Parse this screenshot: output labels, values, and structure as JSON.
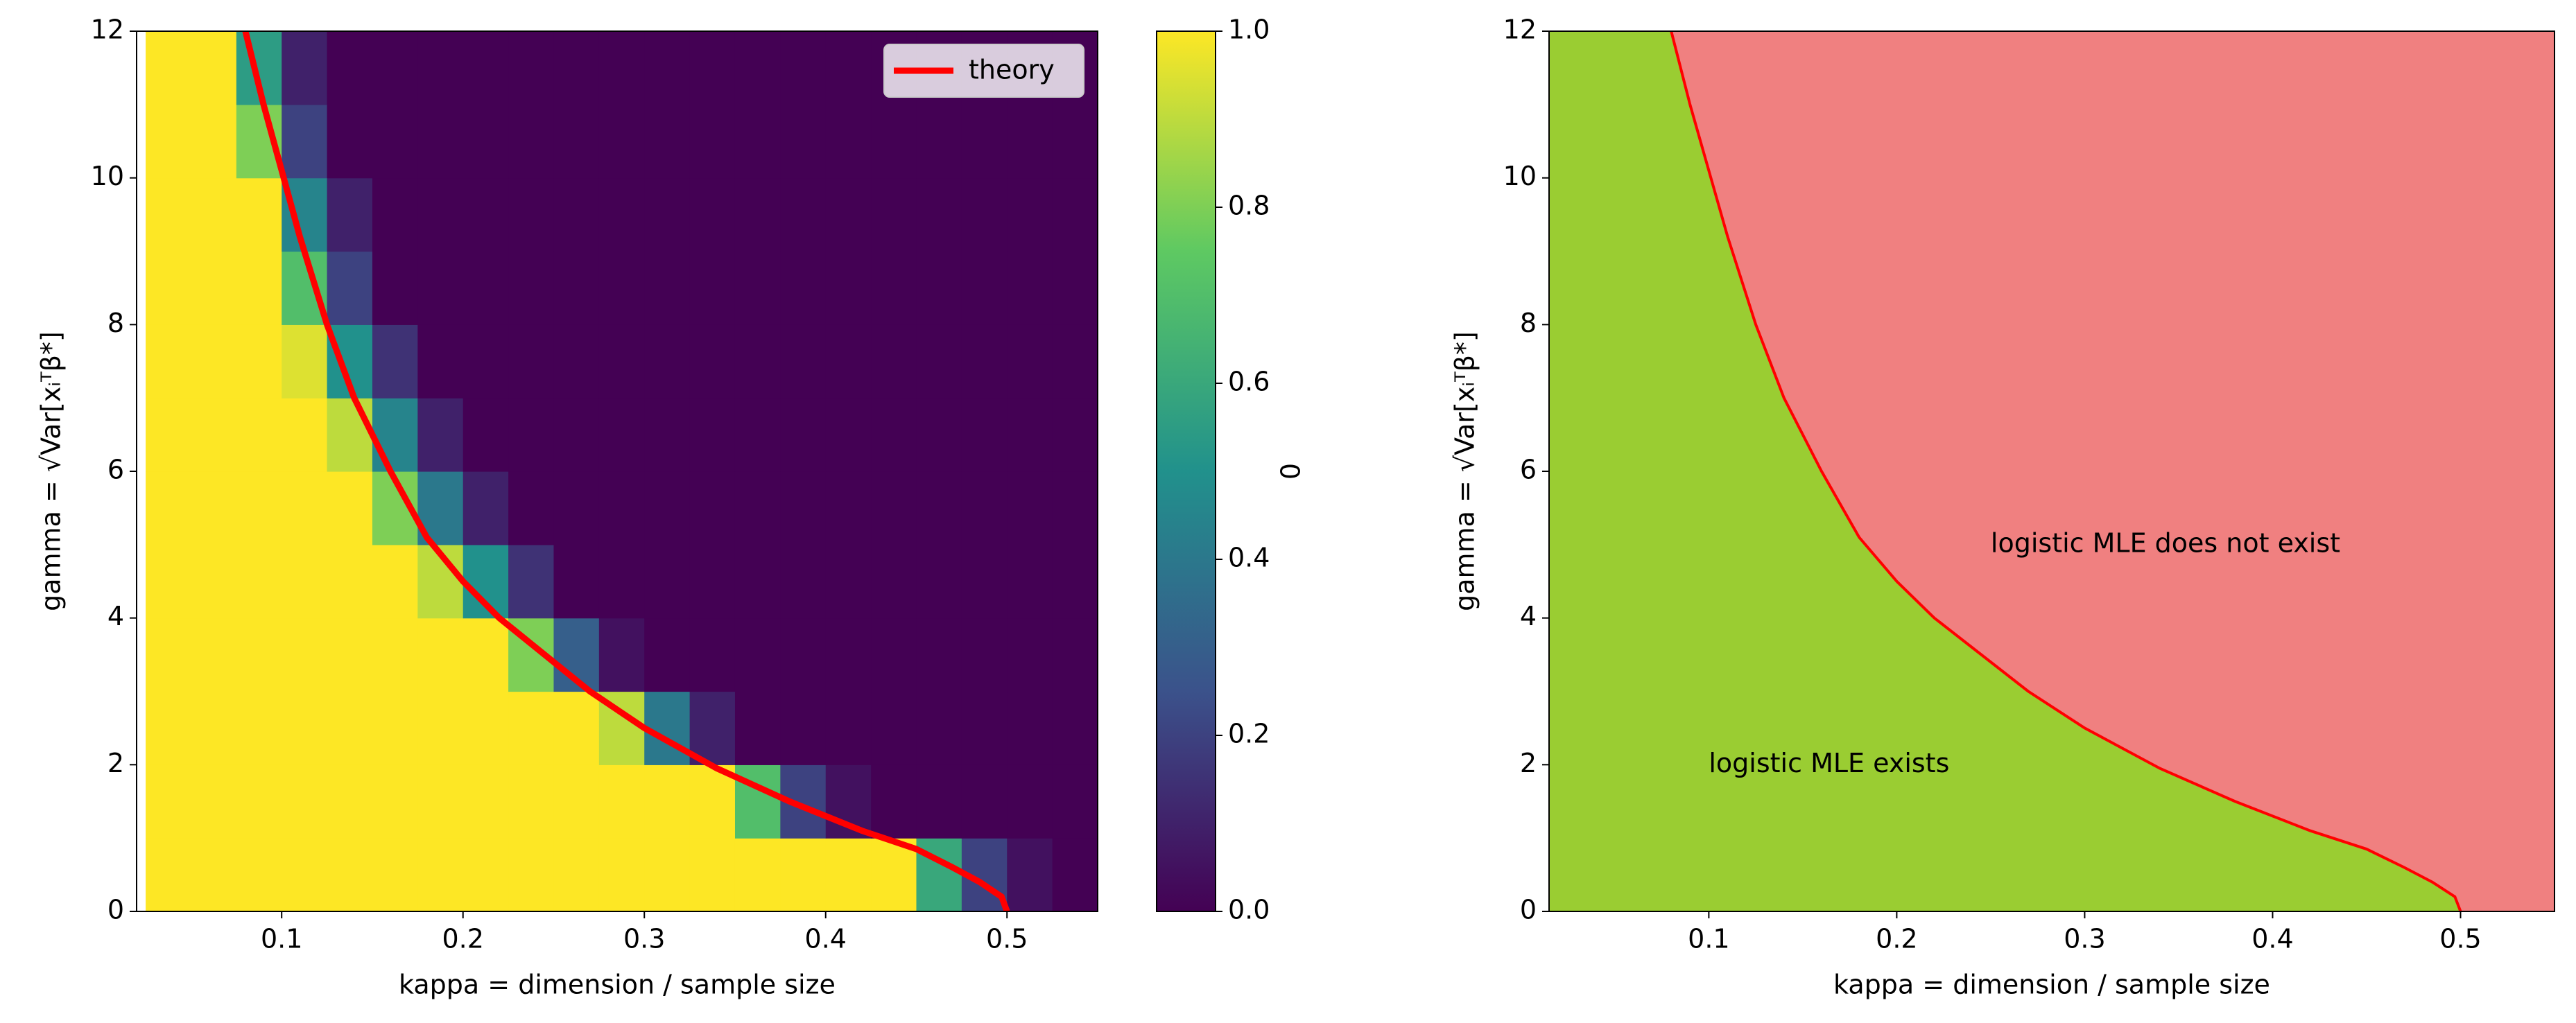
{
  "chart_data": [
    {
      "type": "heatmap",
      "xlabel": "kappa = dimension / sample size",
      "ylabel": "gamma = √Var[xᵢᵀβ*]",
      "xlim": [
        0.02,
        0.55
      ],
      "ylim": [
        0,
        12
      ],
      "xticks": [
        0.1,
        0.2,
        0.3,
        0.4,
        0.5
      ],
      "yticks": [
        0,
        2,
        4,
        6,
        8,
        10,
        12
      ],
      "kappa_bins": [
        0.025,
        0.05,
        0.075,
        0.1,
        0.125,
        0.15,
        0.175,
        0.2,
        0.225,
        0.25,
        0.275,
        0.3,
        0.325,
        0.35,
        0.375,
        0.4,
        0.425,
        0.45,
        0.475,
        0.5,
        0.525,
        0.55
      ],
      "gamma_bins": [
        0,
        1,
        2,
        3,
        4,
        5,
        6,
        7,
        8,
        9,
        10,
        11,
        12
      ],
      "z": [
        [
          1,
          1,
          1,
          1,
          1,
          1,
          1,
          1,
          1,
          1,
          1,
          1,
          1,
          1,
          1,
          1,
          1,
          0.6,
          0.2,
          0.05,
          0
        ],
        [
          1,
          1,
          1,
          1,
          1,
          1,
          1,
          1,
          1,
          1,
          1,
          1,
          1,
          0.7,
          0.2,
          0.05,
          0,
          0,
          0,
          0,
          0
        ],
        [
          1,
          1,
          1,
          1,
          1,
          1,
          1,
          1,
          1,
          1,
          0.9,
          0.4,
          0.1,
          0,
          0,
          0,
          0,
          0,
          0,
          0,
          0
        ],
        [
          1,
          1,
          1,
          1,
          1,
          1,
          1,
          1,
          0.8,
          0.3,
          0.05,
          0,
          0,
          0,
          0,
          0,
          0,
          0,
          0,
          0,
          0
        ],
        [
          1,
          1,
          1,
          1,
          1,
          1,
          0.9,
          0.5,
          0.15,
          0,
          0,
          0,
          0,
          0,
          0,
          0,
          0,
          0,
          0,
          0,
          0
        ],
        [
          1,
          1,
          1,
          1,
          1,
          0.8,
          0.4,
          0.1,
          0,
          0,
          0,
          0,
          0,
          0,
          0,
          0,
          0,
          0,
          0,
          0,
          0
        ],
        [
          1,
          1,
          1,
          1,
          0.9,
          0.45,
          0.1,
          0,
          0,
          0,
          0,
          0,
          0,
          0,
          0,
          0,
          0,
          0,
          0,
          0,
          0
        ],
        [
          1,
          1,
          1,
          0.95,
          0.5,
          0.15,
          0,
          0,
          0,
          0,
          0,
          0,
          0,
          0,
          0,
          0,
          0,
          0,
          0,
          0,
          0
        ],
        [
          1,
          1,
          1,
          0.7,
          0.2,
          0,
          0,
          0,
          0,
          0,
          0,
          0,
          0,
          0,
          0,
          0,
          0,
          0,
          0,
          0,
          0
        ],
        [
          1,
          1,
          1,
          0.45,
          0.1,
          0,
          0,
          0,
          0,
          0,
          0,
          0,
          0,
          0,
          0,
          0,
          0,
          0,
          0,
          0,
          0
        ],
        [
          1,
          1,
          0.8,
          0.2,
          0,
          0,
          0,
          0,
          0,
          0,
          0,
          0,
          0,
          0,
          0,
          0,
          0,
          0,
          0,
          0,
          0
        ],
        [
          1,
          1,
          0.55,
          0.1,
          0,
          0,
          0,
          0,
          0,
          0,
          0,
          0,
          0,
          0,
          0,
          0,
          0,
          0,
          0,
          0,
          0
        ]
      ],
      "colorbar": {
        "label": "0",
        "lim": [
          0,
          1
        ],
        "ticks": [
          {
            "value": 0,
            "label": "0.0"
          },
          {
            "value": 0.2,
            "label": "0.2"
          },
          {
            "value": 0.4,
            "label": "0.4"
          },
          {
            "value": 0.6,
            "label": "0.6"
          },
          {
            "value": 0.8,
            "label": "0.8"
          },
          {
            "value": 1,
            "label": "1.0"
          }
        ]
      },
      "series": [
        {
          "name": "theory",
          "color": "#ff0000",
          "x": [
            0.5,
            0.497,
            0.485,
            0.47,
            0.45,
            0.42,
            0.38,
            0.34,
            0.3,
            0.27,
            0.24,
            0.22,
            0.2,
            0.18,
            0.16,
            0.14,
            0.125,
            0.11,
            0.1,
            0.09,
            0.08
          ],
          "y": [
            0,
            0.2,
            0.4,
            0.6,
            0.85,
            1.1,
            1.5,
            1.95,
            2.5,
            3.0,
            3.6,
            4.0,
            4.5,
            5.1,
            6.0,
            7.0,
            8.0,
            9.2,
            10.1,
            11.0,
            12.0
          ]
        }
      ],
      "legend": "upper right"
    },
    {
      "type": "region",
      "xlabel": "kappa = dimension / sample size",
      "ylabel": "gamma = √Var[xᵢᵀβ*]",
      "xlim": [
        0.015,
        0.55
      ],
      "ylim": [
        0,
        12
      ],
      "xticks": [
        0.1,
        0.2,
        0.3,
        0.4,
        0.5
      ],
      "yticks": [
        0,
        2,
        4,
        6,
        8,
        10,
        12
      ],
      "boundary": {
        "color": "#ff0000",
        "x": [
          0.5,
          0.497,
          0.485,
          0.47,
          0.45,
          0.42,
          0.38,
          0.34,
          0.3,
          0.27,
          0.24,
          0.22,
          0.2,
          0.18,
          0.16,
          0.14,
          0.125,
          0.11,
          0.1,
          0.09,
          0.08
        ],
        "y": [
          0,
          0.2,
          0.4,
          0.6,
          0.85,
          1.1,
          1.5,
          1.95,
          2.5,
          3.0,
          3.6,
          4.0,
          4.5,
          5.1,
          6.0,
          7.0,
          8.0,
          9.2,
          10.1,
          11.0,
          12.0
        ]
      },
      "below_color": "#9acd32",
      "above_color": "#f08080",
      "annotations": [
        {
          "text": "logistic MLE does not exist",
          "x": 0.25,
          "y": 5
        },
        {
          "text": "logistic MLE exists",
          "x": 0.1,
          "y": 2
        }
      ]
    }
  ]
}
